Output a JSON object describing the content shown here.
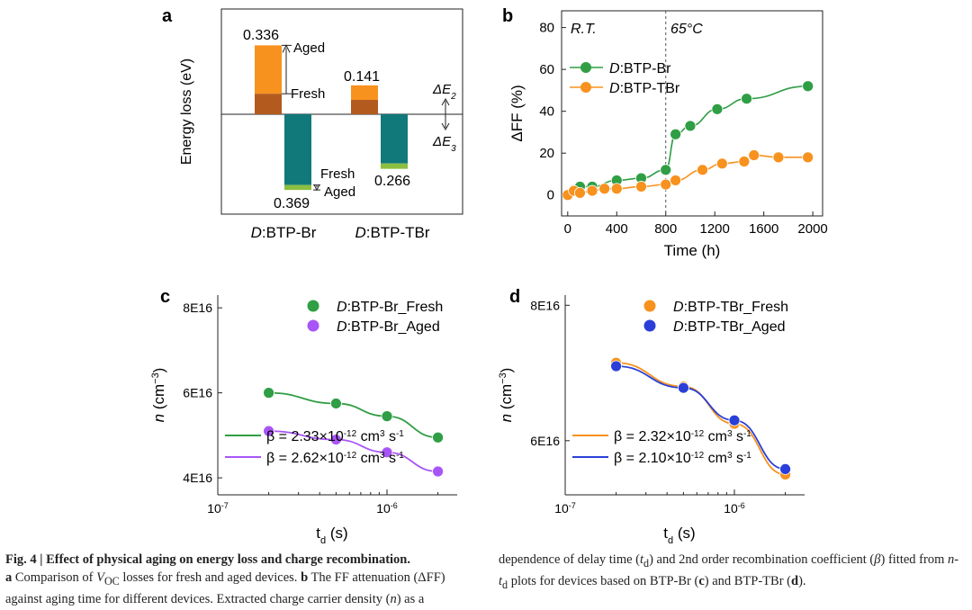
{
  "chart_data": [
    {
      "panel": "a",
      "type": "bar",
      "ylabel": "Energy loss (eV)",
      "categories": [
        {
          "prefix": "D",
          "rest": ":BTP-Br"
        },
        {
          "prefix": "D",
          "rest": ":BTP-TBr"
        }
      ],
      "delta_e2": {
        "label": "ΔE",
        "sub": "2",
        "values": {
          "fresh": [
            0.1,
            0.07
          ],
          "aged": [
            0.336,
            0.141
          ]
        }
      },
      "delta_e3": {
        "label": "ΔE",
        "sub": "3",
        "values": {
          "fresh": [
            0.345,
            0.24
          ],
          "aged": [
            0.369,
            0.266
          ]
        }
      },
      "value_labels": [
        "0.336",
        "0.141",
        "0.369",
        "0.266"
      ],
      "annotations": {
        "aged_top": "Aged",
        "fresh_top": "Fresh",
        "fresh_bottom": "Fresh",
        "aged_bottom": "Aged"
      },
      "ylim": [
        -0.5,
        0.5
      ],
      "colors": {
        "aged_up": "#f7921e",
        "fresh_up": "#b35a1e",
        "aged_down": "#8cbf3f",
        "fresh_down": "#12797a"
      }
    },
    {
      "panel": "b",
      "type": "line",
      "xlabel": "Time (h)",
      "ylabel": "ΔFF (%)",
      "xlim": [
        -50,
        2080
      ],
      "ylim": [
        -10,
        88
      ],
      "xticks": [
        0,
        400,
        800,
        1200,
        1600,
        2000
      ],
      "yticks": [
        0,
        20,
        40,
        60,
        80
      ],
      "region_labels": [
        "R.T.",
        "65°C"
      ],
      "divider_x": 800,
      "series": [
        {
          "name_prefix": "D",
          "name_rest": ":BTP-Br",
          "color": "#2f9e44",
          "x": [
            0,
            100,
            200,
            400,
            600,
            800,
            880,
            1000,
            1220,
            1460,
            1960
          ],
          "y": [
            0,
            4,
            4,
            7,
            8,
            12,
            29,
            33,
            41,
            46,
            52
          ]
        },
        {
          "name_prefix": "D",
          "name_rest": ":BTP-TBr",
          "color": "#f7921e",
          "x": [
            0,
            50,
            100,
            200,
            300,
            400,
            600,
            800,
            880,
            1100,
            1260,
            1440,
            1520,
            1720,
            1960
          ],
          "y": [
            0,
            2,
            1,
            2,
            3,
            3,
            4,
            5,
            7,
            12,
            15,
            16,
            19,
            18,
            18
          ]
        }
      ]
    },
    {
      "panel": "c",
      "type": "scatter",
      "xlabel": "t",
      "xlabel_sub": "d",
      "xlabel_unit": " (s)",
      "ylabel": "n (cm",
      "ylabel_sup": "−3",
      "ylabel_close": ")",
      "xscale": "log",
      "xlim": [
        1e-07,
        2.6e-06
      ],
      "ylim": [
        3.6e+16,
        8.3e+16
      ],
      "xtick_labels": [
        {
          "base": "10",
          "exp": "-7"
        },
        {
          "base": "10",
          "exp": "-6"
        }
      ],
      "yticks": [
        4e+16,
        6e+16,
        8e+16
      ],
      "ytick_labels": [
        "4E16",
        "6E16",
        "8E16"
      ],
      "series": [
        {
          "name_prefix": "D",
          "name_rest": ":BTP-Br_Fresh",
          "color": "#2f9e44",
          "x": [
            2e-07,
            5e-07,
            1e-06,
            2e-06
          ],
          "y": [
            6e+16,
            5.75e+16,
            5.45e+16,
            4.95e+16
          ],
          "fit_label": "β = 2.33×10",
          "fit_exp": "-12",
          "fit_unit": " cm",
          "fit_unit_sup": "3",
          "fit_tail": " s",
          "fit_tail_sup": "-1"
        },
        {
          "name_prefix": "D",
          "name_rest": ":BTP-Br_Aged",
          "color": "#a855f7",
          "x": [
            2e-07,
            5e-07,
            1e-06,
            2e-06
          ],
          "y": [
            5.1e+16,
            4.9e+16,
            4.6e+16,
            4.15e+16
          ],
          "fit_label": "β = 2.62×10",
          "fit_exp": "-12",
          "fit_unit": " cm",
          "fit_unit_sup": "3",
          "fit_tail": " s",
          "fit_tail_sup": "-1"
        }
      ]
    },
    {
      "panel": "d",
      "type": "scatter",
      "xlabel": "t",
      "xlabel_sub": "d",
      "xlabel_unit": " (s)",
      "ylabel": "n (cm",
      "ylabel_sup": "−3",
      "ylabel_close": ")",
      "xscale": "log",
      "xlim": [
        1e-07,
        2.6e-06
      ],
      "ylim": [
        5.2e+16,
        8.15e+16
      ],
      "xtick_labels": [
        {
          "base": "10",
          "exp": "-7"
        },
        {
          "base": "10",
          "exp": "-6"
        }
      ],
      "yticks": [
        6e+16,
        8e+16
      ],
      "ytick_labels": [
        "6E16",
        "8E16"
      ],
      "series": [
        {
          "name_prefix": "D",
          "name_rest": ":BTP-TBr_Fresh",
          "color": "#f7921e",
          "x": [
            2e-07,
            5e-07,
            1e-06,
            2e-06
          ],
          "y": [
            7.15e+16,
            6.8e+16,
            6.25e+16,
            5.5e+16
          ],
          "fit_label": "β = 2.32×10",
          "fit_exp": "-12",
          "fit_unit": " cm",
          "fit_unit_sup": "3",
          "fit_tail": " s",
          "fit_tail_sup": "-1"
        },
        {
          "name_prefix": "D",
          "name_rest": ":BTP-TBr_Aged",
          "color": "#2a3fd8",
          "x": [
            2e-07,
            5e-07,
            1e-06,
            2e-06
          ],
          "y": [
            7.1e+16,
            6.78e+16,
            6.3e+16,
            5.58e+16
          ],
          "fit_label": "β = 2.10×10",
          "fit_exp": "-12",
          "fit_unit": " cm",
          "fit_unit_sup": "3",
          "fit_tail": " s",
          "fit_tail_sup": "-1"
        }
      ]
    }
  ],
  "caption": {
    "fig": "Fig. 4 | Effect of physical aging on energy loss and charge recombination.",
    "left_a": "a",
    "left_text1": " Comparison of ",
    "voc_v": "V",
    "voc_sub": "OC",
    "left_text2": " losses for fresh and aged devices. ",
    "left_b": "b",
    "left_text3": " The FF attenuation (ΔFF) against aging time for different devices. Extracted charge carrier density (",
    "n_var": "n",
    "left_text4": ") as a",
    "right_text1": "dependence of delay time (",
    "td_t": "t",
    "td_sub": "d",
    "right_text2": ") and 2nd order recombination coefficient (",
    "beta": "β",
    "right_text3": ") fitted from ",
    "ntd": "n-t",
    "ntd_sub": "d",
    "right_text4": " plots for devices based on BTP-Br (",
    "c": "c",
    "right_text5": ") and BTP-TBr (",
    "d": "d",
    "right_text6": ")."
  }
}
